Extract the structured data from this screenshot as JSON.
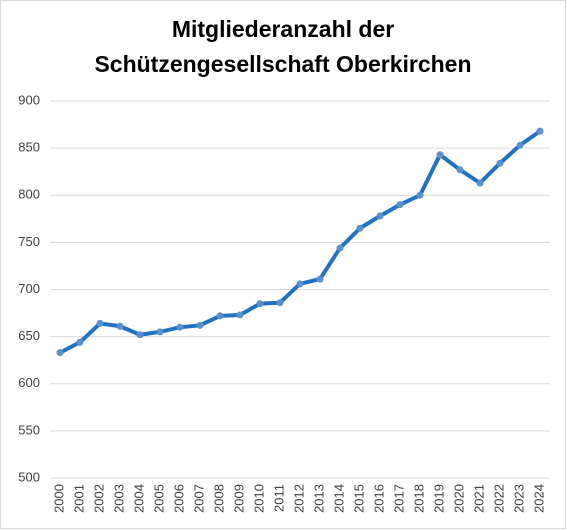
{
  "chart_data": {
    "type": "line",
    "title": [
      "Mitgliederanzahl der",
      "Schützengesellschaft Oberkirchen"
    ],
    "categories": [
      "2000",
      "2001",
      "2002",
      "2003",
      "2004",
      "2005",
      "2006",
      "2007",
      "2008",
      "2009",
      "2010",
      "2011",
      "2012",
      "2013",
      "2014",
      "2015",
      "2016",
      "2017",
      "2018",
      "2019",
      "2020",
      "2021",
      "2022",
      "2023",
      "2024"
    ],
    "values": [
      633,
      644,
      664,
      661,
      652,
      655,
      660,
      662,
      672,
      673,
      685,
      686,
      706,
      711,
      744,
      765,
      778,
      790,
      800,
      843,
      827,
      813,
      834,
      853,
      868
    ],
    "color": "#2172c2",
    "marker_color": "#5a8fd0",
    "ylim": [
      500,
      900
    ],
    "yticks": [
      500,
      550,
      600,
      650,
      700,
      750,
      800,
      850,
      900
    ],
    "grid": true
  }
}
